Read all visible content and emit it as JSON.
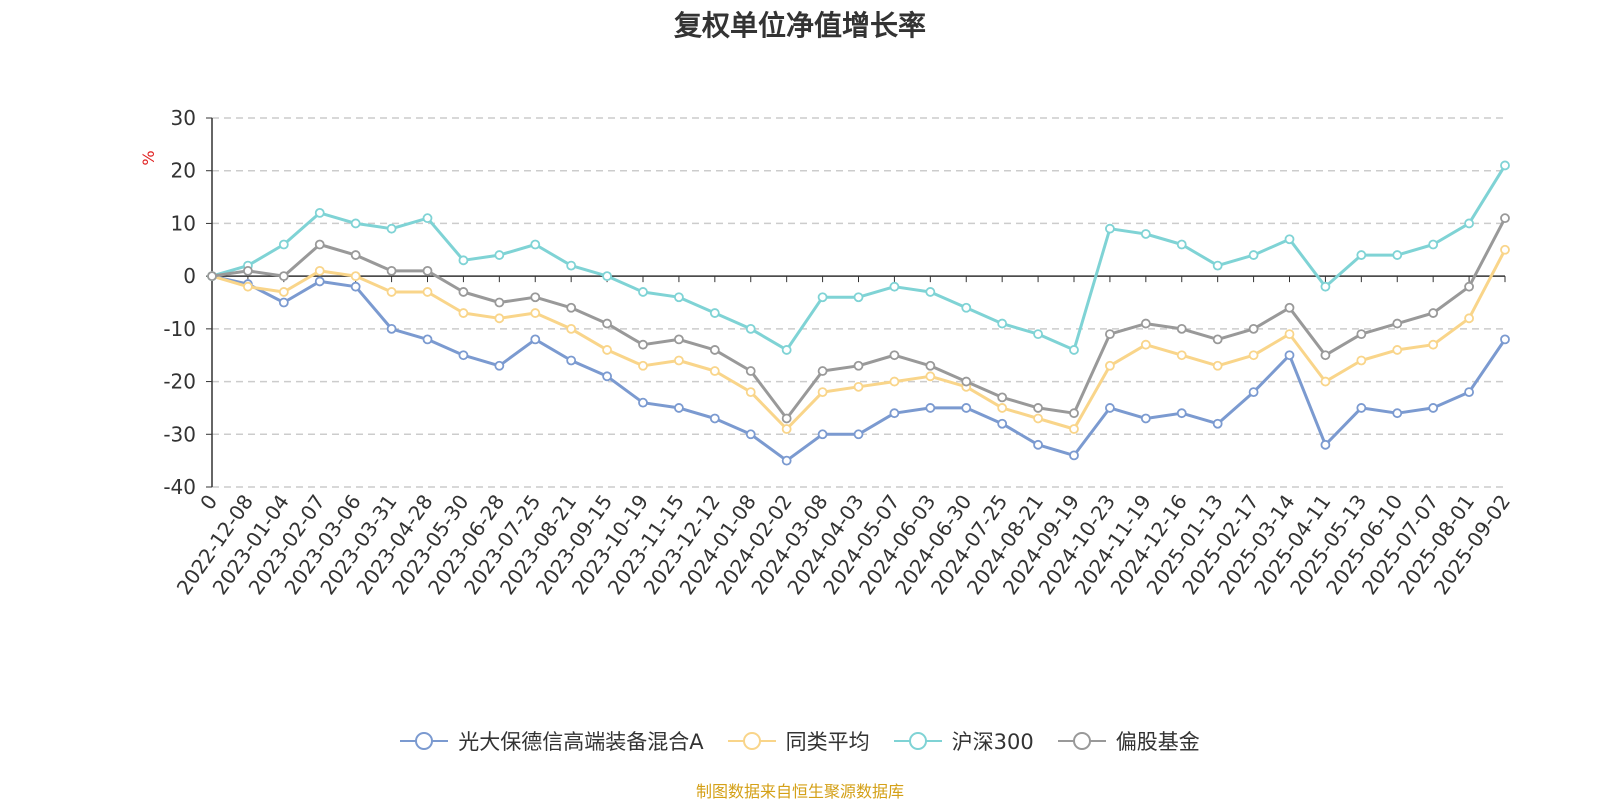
{
  "title": "复权单位净值增长率",
  "source_note": "制图数据来自恒生聚源数据库",
  "chart_data": {
    "type": "line",
    "title": "复权单位净值增长率",
    "ylabel": "%",
    "xlabel": "",
    "ylim": [
      -40,
      30
    ],
    "yticks": [
      30,
      20,
      10,
      0,
      -10,
      -20,
      -30,
      -40
    ],
    "grid": true,
    "legend_position": "bottom",
    "x_tick_labels": [
      "0",
      "2022-12-08",
      "2023-01-04",
      "2023-02-07",
      "2023-03-06",
      "2023-03-31",
      "2023-04-28",
      "2023-05-30",
      "2023-06-28",
      "2023-07-25",
      "2023-08-21",
      "2023-09-15",
      "2023-10-19",
      "2023-11-15",
      "2023-12-12",
      "2024-01-08",
      "2024-02-02",
      "2024-03-08",
      "2024-04-03",
      "2024-05-07",
      "2024-06-03",
      "2024-06-30",
      "2024-07-25",
      "2024-08-21",
      "2024-09-19",
      "2024-10-23",
      "2024-11-19",
      "2024-12-16",
      "2025-01-13",
      "2025-02-17",
      "2025-03-14",
      "2025-04-11",
      "2025-05-13",
      "2025-06-10",
      "2025-07-07",
      "2025-08-01",
      "2025-09-02"
    ],
    "x": [
      0,
      1,
      2,
      3,
      4,
      5,
      6,
      7,
      8,
      9,
      10,
      11,
      12,
      13,
      14,
      15,
      16,
      17,
      18,
      19,
      20,
      21,
      22,
      23,
      24,
      25,
      26,
      27,
      28,
      29,
      30,
      31,
      32,
      33,
      34,
      35,
      36
    ],
    "series": [
      {
        "name": "光大保德信高端装备混合A",
        "color": "#7b9ad0",
        "values": [
          0,
          -1.5,
          -5,
          -1,
          -2,
          -10,
          -12,
          -15,
          -17,
          -12,
          -16,
          -19,
          -24,
          -25,
          -27,
          -30,
          -35,
          -30,
          -30,
          -26,
          -25,
          -25,
          -28,
          -32,
          -34,
          -25,
          -27,
          -26,
          -28,
          -22,
          -15,
          -32,
          -25,
          -26,
          -25,
          -22,
          -12
        ]
      },
      {
        "name": "同类平均",
        "color": "#f9d58a",
        "values": [
          0,
          -2,
          -3,
          1,
          0,
          -3,
          -3,
          -7,
          -8,
          -7,
          -10,
          -14,
          -17,
          -16,
          -18,
          -22,
          -29,
          -22,
          -21,
          -20,
          -19,
          -21,
          -25,
          -27,
          -29,
          -17,
          -13,
          -15,
          -17,
          -15,
          -11,
          -20,
          -16,
          -14,
          -13,
          -8,
          5
        ]
      },
      {
        "name": "沪深300",
        "color": "#7fd3d5",
        "values": [
          0,
          2,
          6,
          12,
          10,
          9,
          11,
          3,
          4,
          6,
          2,
          0,
          -3,
          -4,
          -7,
          -10,
          -14,
          -4,
          -4,
          -2,
          -3,
          -6,
          -9,
          -11,
          -14,
          9,
          8,
          6,
          2,
          4,
          7,
          -2,
          4,
          4,
          6,
          10,
          21
        ]
      },
      {
        "name": "偏股基金",
        "color": "#999999",
        "values": [
          0,
          1,
          0,
          6,
          4,
          1,
          1,
          -3,
          -5,
          -4,
          -6,
          -9,
          -13,
          -12,
          -14,
          -18,
          -27,
          -18,
          -17,
          -15,
          -17,
          -20,
          -23,
          -25,
          -26,
          -11,
          -9,
          -10,
          -12,
          -10,
          -6,
          -15,
          -11,
          -9,
          -7,
          -2,
          11
        ]
      }
    ]
  },
  "legend": {
    "items": [
      {
        "label": "光大保德信高端装备混合A",
        "color": "#7b9ad0"
      },
      {
        "label": "同类平均",
        "color": "#f9d58a"
      },
      {
        "label": "沪深300",
        "color": "#7fd3d5"
      },
      {
        "label": "偏股基金",
        "color": "#999999"
      }
    ]
  }
}
